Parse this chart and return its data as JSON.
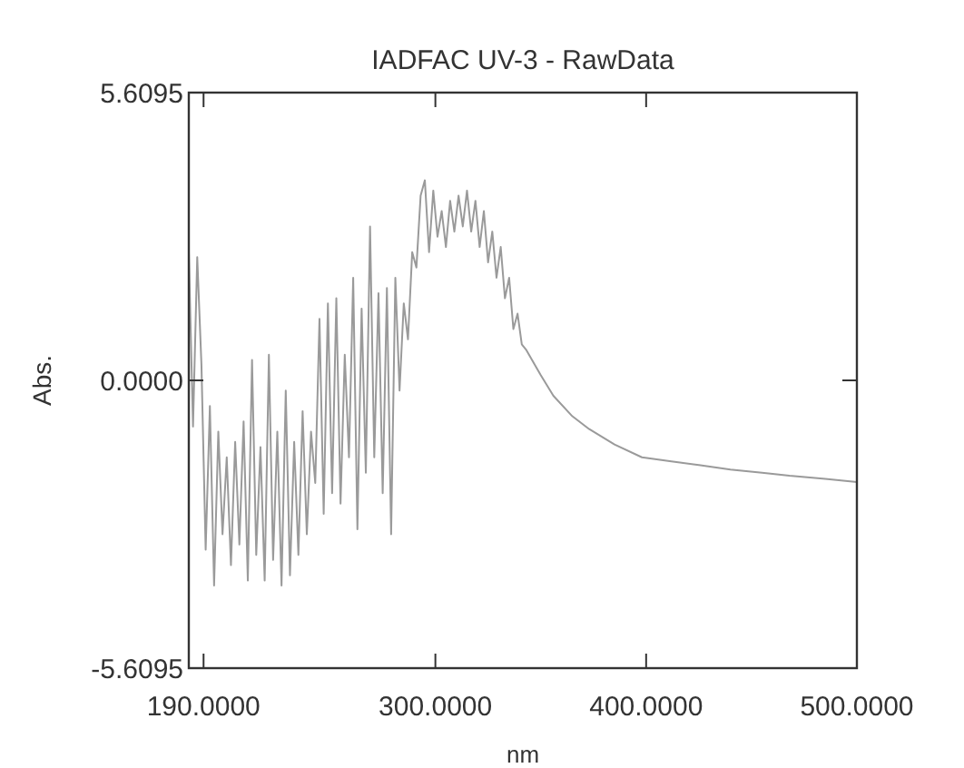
{
  "chart_data": {
    "type": "line",
    "title": "IADFAC UV-3 - RawData",
    "xlabel": "nm",
    "ylabel": "Abs.",
    "xlim": [
      183,
      500
    ],
    "ylim": [
      -5.6095,
      5.6095
    ],
    "xticks": [
      {
        "value": 190,
        "label": "190.0000"
      },
      {
        "value": 300,
        "label": "300.0000"
      },
      {
        "value": 400,
        "label": "400.0000"
      },
      {
        "value": 500,
        "label": "500.0000"
      }
    ],
    "yticks": [
      {
        "value": -5.6095,
        "label": "-5.6095"
      },
      {
        "value": 0,
        "label": "0.0000"
      },
      {
        "value": 5.6095,
        "label": "5.6095"
      }
    ],
    "grid": false,
    "marker": "none",
    "line_style": "solid",
    "series": [
      {
        "color": "#9a9a9a",
        "x": [
          183,
          185,
          187,
          189,
          191,
          193,
          195,
          197,
          199,
          201,
          203,
          205,
          207,
          209,
          211,
          213,
          215,
          217,
          219,
          221,
          223,
          225,
          227,
          229,
          231,
          233,
          235,
          237,
          239,
          241,
          243,
          245,
          247,
          249,
          251,
          253,
          255,
          257,
          259,
          261,
          263,
          265,
          267,
          269,
          271,
          273,
          275,
          277,
          279,
          281,
          283,
          285,
          287,
          289,
          291,
          293,
          295,
          297,
          299,
          301,
          303,
          305,
          307,
          309,
          311,
          313,
          315,
          317,
          319,
          321,
          323,
          325,
          327,
          329,
          331,
          333,
          335,
          337,
          339,
          341,
          343,
          350,
          356,
          365,
          373,
          385,
          398,
          412,
          425,
          440,
          455,
          468,
          485,
          500
        ],
        "values": [
          2.5,
          -0.9,
          2.4,
          0.3,
          -3.3,
          -0.5,
          -4.0,
          -1.0,
          -3.0,
          -1.5,
          -3.6,
          -1.2,
          -3.2,
          -0.8,
          -3.9,
          0.4,
          -3.4,
          -1.3,
          -3.9,
          0.5,
          -3.5,
          -1.0,
          -4.0,
          -0.2,
          -3.8,
          -1.2,
          -3.4,
          -0.6,
          -3.0,
          -1.0,
          -2.0,
          1.2,
          -2.6,
          1.5,
          -2.2,
          1.6,
          -2.4,
          0.5,
          -1.5,
          2.0,
          -2.9,
          1.4,
          -1.8,
          3.0,
          -1.5,
          1.7,
          -2.2,
          1.8,
          -3.0,
          2.0,
          -0.2,
          1.5,
          0.8,
          2.5,
          2.2,
          3.6,
          3.9,
          2.5,
          3.7,
          2.8,
          3.3,
          2.6,
          3.5,
          2.9,
          3.6,
          3.0,
          3.7,
          2.9,
          3.5,
          2.6,
          3.3,
          2.3,
          2.9,
          2.0,
          2.6,
          1.6,
          2.0,
          1.0,
          1.3,
          0.7,
          0.6,
          0.1,
          -0.3,
          -0.7,
          -0.95,
          -1.25,
          -1.5,
          -1.58,
          -1.65,
          -1.74,
          -1.8,
          -1.86,
          -1.92,
          -1.98
        ]
      }
    ]
  }
}
